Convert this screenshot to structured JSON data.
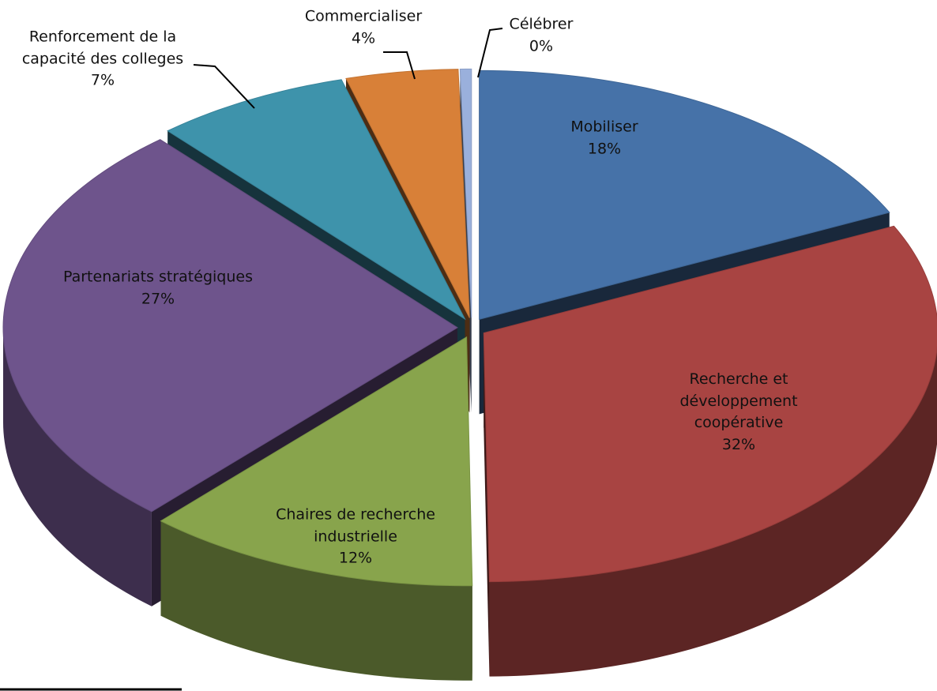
{
  "chart_data": {
    "type": "pie3d",
    "categories": [
      "Mobiliser",
      "Recherche et développement coopérative",
      "Chaires de recherche industrielle",
      "Partenariats stratégiques",
      "Renforcement de la capacité des colleges",
      "Commercialiser",
      "Célébrer"
    ],
    "values": [
      18,
      32,
      12,
      27,
      7,
      4,
      0.4
    ],
    "value_labels": [
      "18%",
      "32%",
      "12%",
      "27%",
      "7%",
      "4%",
      "0%"
    ],
    "colors": [
      "#4672a8",
      "#a84442",
      "#88a44c",
      "#6e548c",
      "#3e93ab",
      "#d88038",
      "#9ab0dc"
    ]
  }
}
